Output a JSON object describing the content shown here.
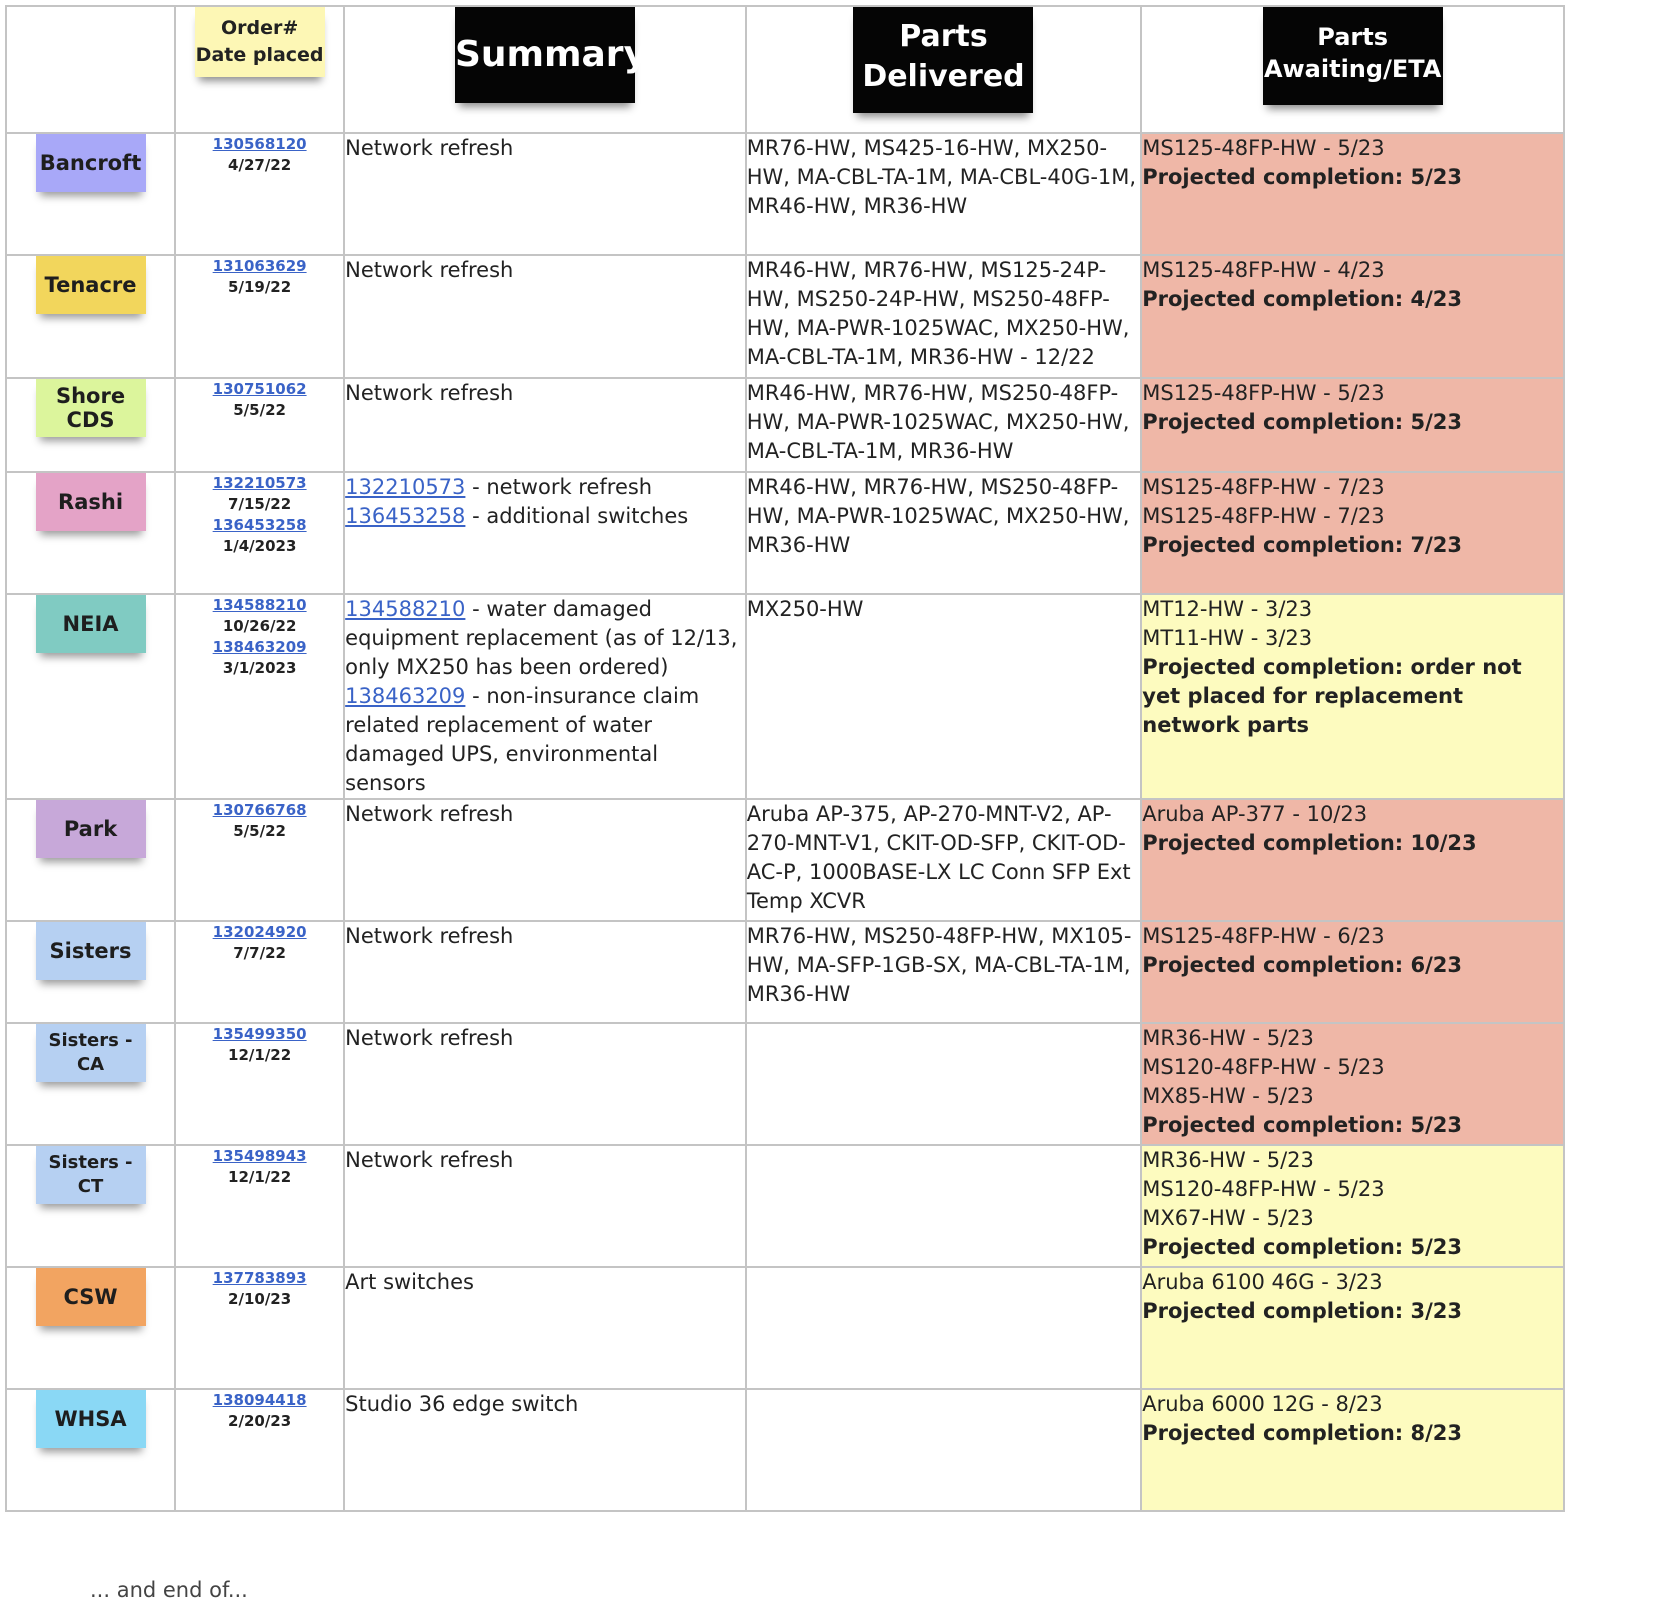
{
  "headers": {
    "order": [
      "Order#",
      "Date placed"
    ],
    "summary": "Summary",
    "delivered": [
      "Parts",
      "Delivered"
    ],
    "awaiting": [
      "Parts",
      "Awaiting/ETA"
    ]
  },
  "colors": {
    "red_status": "#efb7a7",
    "yellow_status": "#fdfbbf",
    "link": "#3a63c7"
  },
  "rows": [
    {
      "client": "Bancroft",
      "note_color": "#a8a8f8",
      "orders": [
        {
          "num": "130568120",
          "date": "4/27/22"
        }
      ],
      "summary": [
        {
          "text": "Network refresh"
        }
      ],
      "delivered": "MR76-HW, MS425-16-HW, MX250-HW, MA-CBL-TA-1M, MA-CBL-40G-1M, MR46-HW, MR36-HW",
      "awaiting": [
        "MS125-48FP-HW - 5/23"
      ],
      "completion": "Projected completion: 5/23",
      "status": "red",
      "height": 122
    },
    {
      "client": "Tenacre",
      "note_color": "#f2d65c",
      "orders": [
        {
          "num": "131063629",
          "date": "5/19/22"
        }
      ],
      "summary": [
        {
          "text": "Network refresh"
        }
      ],
      "delivered": "MR46-HW, MR76-HW, MS125-24P-HW, MS250-24P-HW, MS250-48FP-HW, MA-PWR-1025WAC, MX250-HW, MA-CBL-TA-1M, MR36-HW - 12/22",
      "awaiting": [
        "MS125-48FP-HW - 4/23"
      ],
      "completion": "Projected completion: 4/23",
      "status": "red",
      "height": 123
    },
    {
      "client": "Shore CDS",
      "note_color": "#dcf59c",
      "orders": [
        {
          "num": "130751062",
          "date": "5/5/22"
        }
      ],
      "summary": [
        {
          "text": "Network refresh"
        }
      ],
      "delivered": "MR46-HW, MR76-HW, MS250-48FP-HW, MA-PWR-1025WAC, MX250-HW, MA-CBL-TA-1M, MR36-HW",
      "awaiting": [
        "MS125-48FP-HW - 5/23"
      ],
      "completion": "Projected completion: 5/23",
      "status": "red",
      "height": 94
    },
    {
      "client": "Rashi",
      "note_color": "#e4a3c7",
      "orders": [
        {
          "num": "132210573",
          "date": "7/15/22"
        },
        {
          "num": "136453258",
          "date": "1/4/2023"
        }
      ],
      "summary": [
        {
          "link": "132210573",
          "text": " - network refresh"
        },
        {
          "link": "136453258",
          "text": " - additional switches"
        }
      ],
      "delivered": "MR46-HW, MR76-HW, MS250-48FP-HW, MA-PWR-1025WAC, MX250-HW, MR36-HW",
      "awaiting": [
        "MS125-48FP-HW - 7/23",
        "MS125-48FP-HW - 7/23"
      ],
      "completion": "Projected completion: 7/23",
      "status": "red",
      "height": 122
    },
    {
      "client": "NEIA",
      "note_color": "#80cbc2",
      "orders": [
        {
          "num": "134588210",
          "date": "10/26/22"
        },
        {
          "num": "138463209",
          "date": "3/1/2023"
        }
      ],
      "summary": [
        {
          "link": "134588210",
          "text": " - water damaged equipment replacement (as of 12/13, only MX250 has been ordered)"
        },
        {
          "link": "138463209",
          "text": " - non-insurance claim related replacement of water damaged UPS, environmental sensors"
        }
      ],
      "delivered": "MX250-HW",
      "awaiting": [
        "MT12-HW - 3/23",
        "MT11-HW - 3/23"
      ],
      "completion": "Projected completion: order not yet placed for replacement network parts",
      "status": "yellow",
      "height": 180
    },
    {
      "client": "Park",
      "note_color": "#c7a8d9",
      "orders": [
        {
          "num": "130766768",
          "date": "5/5/22"
        }
      ],
      "summary": [
        {
          "text": "Network refresh"
        }
      ],
      "delivered": "Aruba AP-375, AP-270-MNT-V2, AP-270-MNT-V1, CKIT-OD-SFP, CKIT-OD-AC-P, 1000BASE-LX LC Conn SFP Ext Temp XCVR",
      "awaiting": [
        "Aruba AP-377 - 10/23"
      ],
      "completion": "Projected completion: 10/23",
      "status": "red",
      "height": 122
    },
    {
      "client": "Sisters",
      "note_color": "#b6d0f2",
      "orders": [
        {
          "num": "132024920",
          "date": "7/7/22"
        }
      ],
      "summary": [
        {
          "text": "Network refresh"
        }
      ],
      "delivered": "MR76-HW, MS250-48FP-HW, MX105-HW, MA-SFP-1GB-SX, MA-CBL-TA-1M, MR36-HW",
      "awaiting": [
        "MS125-48FP-HW - 6/23"
      ],
      "completion": "Projected completion: 6/23",
      "status": "red",
      "height": 102
    },
    {
      "client": "Sisters - CA",
      "note_color": "#b6d0f2",
      "orders": [
        {
          "num": "135499350",
          "date": "12/1/22"
        }
      ],
      "summary": [
        {
          "text": "Network refresh"
        }
      ],
      "delivered": "",
      "awaiting": [
        "MR36-HW - 5/23",
        "MS120-48FP-HW - 5/23",
        "MX85-HW - 5/23"
      ],
      "completion": "Projected completion: 5/23",
      "status": "red",
      "height": 122
    },
    {
      "client": "Sisters - CT",
      "note_color": "#b6d0f2",
      "orders": [
        {
          "num": "135498943",
          "date": "12/1/22"
        }
      ],
      "summary": [
        {
          "text": "Network refresh"
        }
      ],
      "delivered": "",
      "awaiting": [
        "MR36-HW - 5/23",
        "MS120-48FP-HW - 5/23",
        "MX67-HW - 5/23"
      ],
      "completion": "Projected completion: 5/23",
      "status": "yellow",
      "height": 122
    },
    {
      "client": "CSW",
      "note_color": "#f2a461",
      "orders": [
        {
          "num": "137783893",
          "date": "2/10/23"
        }
      ],
      "summary": [
        {
          "text": "Art switches"
        }
      ],
      "delivered": "",
      "awaiting": [
        "Aruba 6100 46G - 3/23"
      ],
      "completion": "Projected completion: 3/23",
      "status": "yellow",
      "height": 122
    },
    {
      "client": "WHSA",
      "note_color": "#8ad8f5",
      "orders": [
        {
          "num": "138094418",
          "date": "2/20/23"
        }
      ],
      "summary": [
        {
          "text": "Studio 36 edge switch"
        }
      ],
      "delivered": "",
      "awaiting": [
        "Aruba 6000 12G - 8/23"
      ],
      "completion": "Projected completion: 8/23",
      "status": "yellow",
      "height": 122
    }
  ],
  "footer": "... and end of..."
}
